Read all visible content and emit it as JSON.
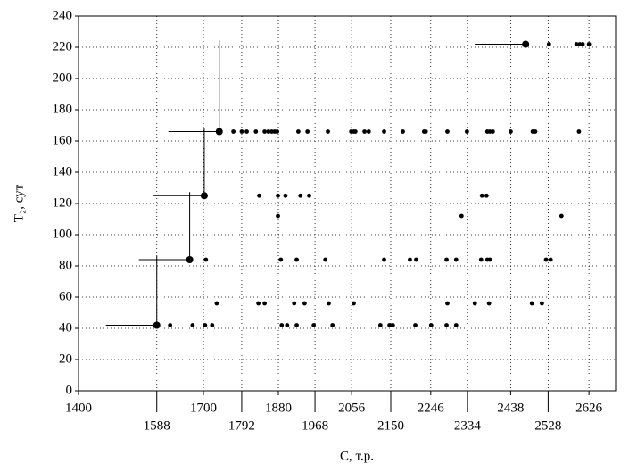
{
  "chart_data": {
    "type": "scatter",
    "x_label": "C, т.р.",
    "y_label": "T₂, сут",
    "xlim": [
      1400,
      2690
    ],
    "ylim": [
      0,
      240
    ],
    "xticks": [
      1400,
      1588,
      1700,
      1792,
      1880,
      1968,
      2056,
      2150,
      2246,
      2334,
      2438,
      2528,
      2626
    ],
    "yticks": [
      0,
      20,
      40,
      60,
      80,
      100,
      120,
      140,
      160,
      180,
      200,
      220,
      240
    ],
    "grid": true,
    "series": [
      {
        "color": "#000000",
        "x": [
          2530,
          2596,
          2604,
          2611,
          2626,
          1772,
          1792,
          1804,
          1826,
          1847,
          1856,
          1864,
          1871,
          1877,
          1928,
          1950,
          1999,
          2055,
          2061,
          2065,
          2087,
          2097,
          2134,
          2179,
          2230,
          2234,
          2286,
          2333,
          2382,
          2388,
          2395,
          2438,
          2491,
          2497,
          2602,
          1834,
          1879,
          1897,
          1933,
          1954,
          2369,
          2380,
          1879,
          2320,
          2560,
          1706,
          1886,
          1924,
          1993,
          2134,
          2196,
          2211,
          2284,
          2307,
          2367,
          2382,
          2388,
          2523,
          2534,
          1732,
          1832,
          1847,
          1918,
          1943,
          2001,
          2061,
          2286,
          2352,
          2386,
          2489,
          2513,
          1620,
          1674,
          1704,
          1721,
          1888,
          1901,
          1924,
          1965,
          2010,
          2125,
          2147,
          2155,
          2209,
          2247,
          2284,
          2307
        ],
        "y": [
          222,
          222,
          222,
          222,
          222,
          166,
          166,
          166,
          166,
          166,
          166,
          166,
          166,
          166,
          166,
          166,
          166,
          166,
          166,
          166,
          166,
          166,
          166,
          166,
          166,
          166,
          166,
          166,
          166,
          166,
          166,
          166,
          166,
          166,
          166,
          125,
          125,
          125,
          125,
          125,
          125,
          125,
          112,
          112,
          112,
          84,
          84,
          84,
          84,
          84,
          84,
          84,
          84,
          84,
          84,
          84,
          84,
          84,
          84,
          56,
          56,
          56,
          56,
          56,
          56,
          56,
          56,
          56,
          56,
          56,
          56,
          42,
          42,
          42,
          42,
          42,
          42,
          42,
          42,
          42,
          42,
          42,
          42,
          42,
          42,
          42,
          42
        ]
      },
      {
        "color": "#000000",
        "x": [
          1588,
          1667,
          1702,
          1738,
          2474
        ],
        "y": [
          42,
          84,
          125,
          166,
          222
        ]
      }
    ]
  }
}
